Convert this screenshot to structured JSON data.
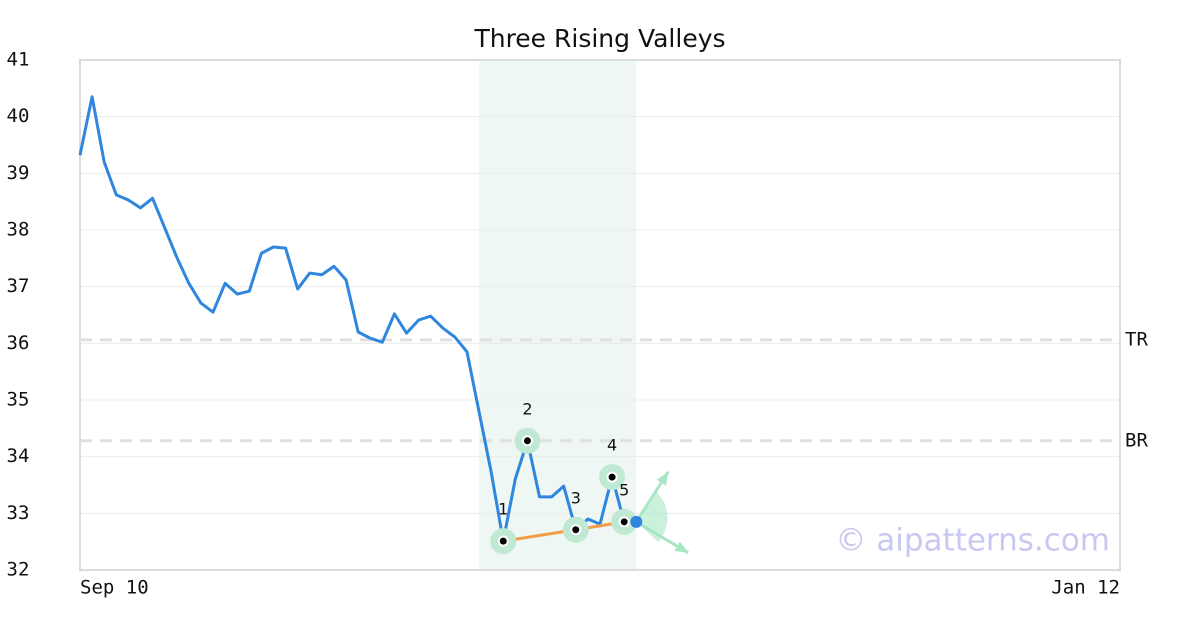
{
  "chart_data": {
    "type": "line",
    "title": "Three Rising Valleys",
    "watermark": "© aipatterns.com",
    "x": [
      0,
      1,
      2,
      3,
      4,
      5,
      6,
      7,
      8,
      9,
      10,
      11,
      12,
      13,
      14,
      15,
      16,
      17,
      18,
      19,
      20,
      21,
      22,
      23,
      24,
      25,
      26,
      27,
      28,
      29,
      30,
      31,
      32,
      33,
      34,
      35,
      36,
      37,
      38,
      39,
      40,
      41,
      42,
      43,
      44,
      45,
      46
    ],
    "series": [
      {
        "color": "#2e86de",
        "values": [
          39.32,
          40.35,
          39.2,
          38.62,
          38.53,
          38.39,
          38.56,
          38.04,
          37.52,
          37.06,
          36.71,
          36.55,
          37.06,
          36.87,
          36.92,
          37.59,
          37.7,
          37.68,
          36.96,
          37.24,
          37.21,
          37.36,
          37.12,
          36.2,
          36.09,
          36.02,
          36.52,
          36.18,
          36.41,
          36.48,
          36.27,
          36.11,
          35.85,
          34.79,
          33.73,
          32.51,
          33.61,
          34.28,
          33.29,
          33.29,
          33.48,
          32.71,
          32.9,
          32.81,
          33.64,
          32.85,
          32.85
        ]
      }
    ],
    "xlim": [
      0,
      86
    ],
    "xticks": [
      {
        "value": 0,
        "label": "Sep 10"
      },
      {
        "value": 86,
        "label": "Jan 12"
      }
    ],
    "ylim": [
      32,
      41
    ],
    "yticks": [
      32,
      33,
      34,
      35,
      36,
      37,
      38,
      39,
      40,
      41
    ],
    "grid": true,
    "region": [
      33,
      46
    ],
    "region_color": "#eef7f3",
    "pattern_points": [
      {
        "label": "1",
        "x": 35,
        "y": 32.51
      },
      {
        "label": "2",
        "x": 37,
        "y": 34.28
      },
      {
        "label": "3",
        "x": 41,
        "y": 32.71
      },
      {
        "label": "4",
        "x": 44,
        "y": 33.64
      },
      {
        "label": "5",
        "x": 45,
        "y": 32.85
      }
    ],
    "trend_color": "#f39c44",
    "levels": [
      {
        "label": "TR",
        "value": 36.06
      },
      {
        "label": "BR",
        "value": 34.28
      }
    ]
  }
}
